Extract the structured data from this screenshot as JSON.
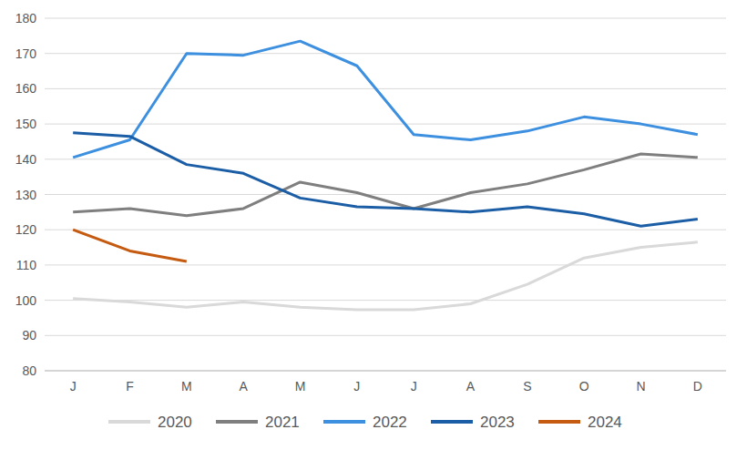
{
  "chart_data": {
    "type": "line",
    "categories": [
      "J",
      "F",
      "M",
      "A",
      "M",
      "J",
      "J",
      "A",
      "S",
      "O",
      "N",
      "D"
    ],
    "series": [
      {
        "name": "2020",
        "color": "#d9d9d9",
        "values": [
          100.5,
          99.5,
          98,
          99.5,
          98,
          97.3,
          97.3,
          99,
          104.5,
          112,
          115,
          116.5
        ]
      },
      {
        "name": "2021",
        "color": "#7f7f7f",
        "values": [
          125,
          126,
          124,
          126,
          133.5,
          130.5,
          126,
          130.5,
          133,
          137,
          141.5,
          140.5
        ]
      },
      {
        "name": "2022",
        "color": "#3d8fdf",
        "values": [
          140.5,
          145.5,
          170,
          169.5,
          173.5,
          166.5,
          147,
          145.5,
          148,
          152,
          150,
          147
        ]
      },
      {
        "name": "2023",
        "color": "#1c5ea6",
        "values": [
          147.5,
          146.5,
          138.5,
          136,
          129,
          126.5,
          126,
          125,
          126.5,
          124.5,
          121,
          123
        ]
      },
      {
        "name": "2024",
        "color": "#c55a11",
        "values": [
          120,
          114,
          111,
          null,
          null,
          null,
          null,
          null,
          null,
          null,
          null,
          null
        ]
      }
    ],
    "ylim": [
      80,
      180
    ],
    "yticks": [
      80,
      90,
      100,
      110,
      120,
      130,
      140,
      150,
      160,
      170,
      180
    ],
    "grid": true,
    "legend": "bottom"
  }
}
